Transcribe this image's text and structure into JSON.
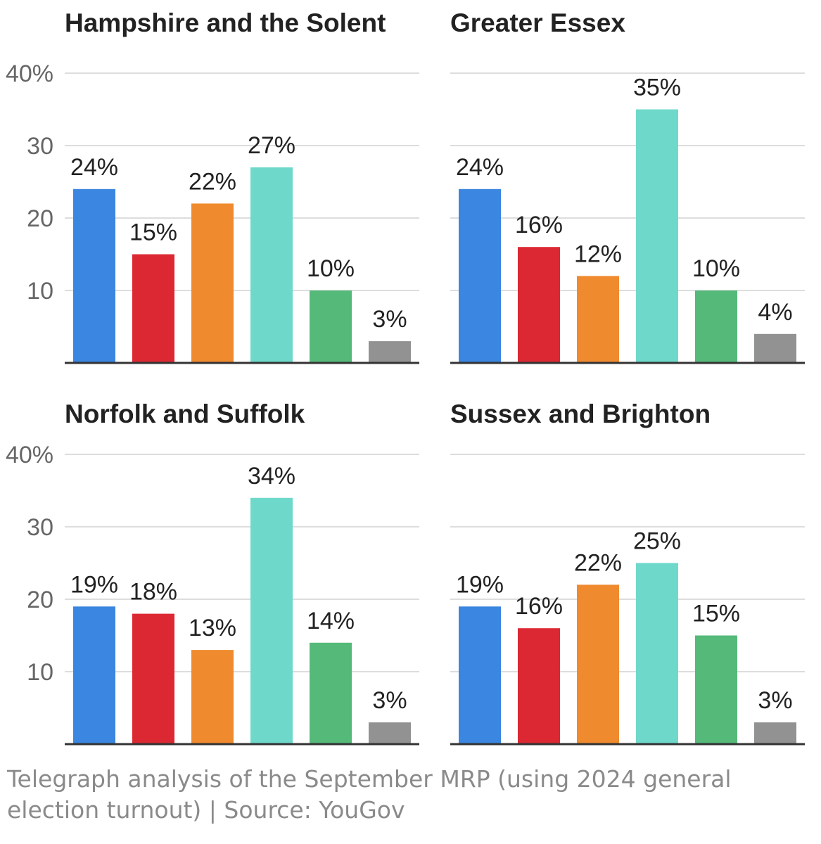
{
  "caption": "Telegraph analysis of the September MRP (using 2024 general election turnout) | Source: YouGov",
  "colors": {
    "party_bars": [
      "#3a86e0",
      "#dc2833",
      "#ef8a2f",
      "#6ed9cb",
      "#55b979",
      "#929292"
    ],
    "gridline": "#dddddd",
    "axis": "#333333",
    "tick_text": "#666666",
    "label_text": "#222222"
  },
  "chart_data": [
    {
      "type": "bar",
      "title": "Hampshire and the Solent",
      "values": [
        24,
        15,
        22,
        27,
        10,
        3
      ],
      "value_labels": [
        "24%",
        "15%",
        "22%",
        "27%",
        "10%",
        "3%"
      ],
      "yticks": [
        "40%",
        "30",
        "20",
        "10"
      ],
      "ylim": [
        0,
        40
      ],
      "grid": true
    },
    {
      "type": "bar",
      "title": "Greater Essex",
      "values": [
        24,
        16,
        12,
        35,
        10,
        4
      ],
      "value_labels": [
        "24%",
        "16%",
        "12%",
        "35%",
        "10%",
        "4%"
      ],
      "yticks": [],
      "ylim": [
        0,
        40
      ],
      "grid": true
    },
    {
      "type": "bar",
      "title": "Norfolk and Suffolk",
      "values": [
        19,
        18,
        13,
        34,
        14,
        3
      ],
      "value_labels": [
        "19%",
        "18%",
        "13%",
        "34%",
        "14%",
        "3%"
      ],
      "yticks": [
        "40%",
        "30",
        "20",
        "10"
      ],
      "ylim": [
        0,
        40
      ],
      "grid": true
    },
    {
      "type": "bar",
      "title": "Sussex and Brighton",
      "values": [
        19,
        16,
        22,
        25,
        15,
        3
      ],
      "value_labels": [
        "19%",
        "16%",
        "22%",
        "25%",
        "15%",
        "3%"
      ],
      "yticks": [],
      "ylim": [
        0,
        40
      ],
      "grid": true
    }
  ]
}
